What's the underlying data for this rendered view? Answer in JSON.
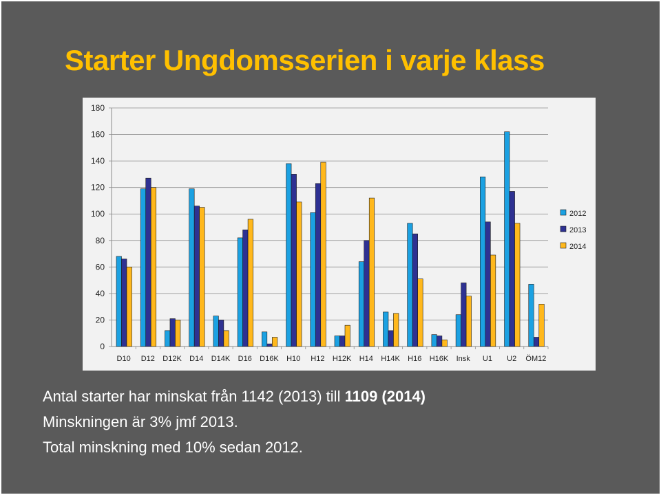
{
  "slide": {
    "title": "Starter Ungdomsserien i varje klass",
    "text_line1_prefix": "Antal starter har minskat från 1142 (2013) till ",
    "text_line1_bold": "1109 (2014)",
    "text_line2": "Minskningen är 3% jmf 2013.",
    "text_line3": "Total minskning med 10% sedan 2012."
  },
  "chart_data": {
    "type": "bar",
    "categories": [
      "D10",
      "D12",
      "D12K",
      "D14",
      "D14K",
      "D16",
      "D16K",
      "H10",
      "H12",
      "H12K",
      "H14",
      "H14K",
      "H16",
      "H16K",
      "Insk",
      "U1",
      "U2",
      "ÖM12"
    ],
    "series": [
      {
        "name": "2012",
        "color": "#1ba1e2",
        "values": [
          68,
          119,
          12,
          119,
          23,
          82,
          11,
          138,
          101,
          8,
          64,
          26,
          93,
          9,
          24,
          128,
          162,
          47
        ]
      },
      {
        "name": "2013",
        "color": "#2e3192",
        "values": [
          66,
          127,
          21,
          106,
          20,
          88,
          2,
          130,
          123,
          8,
          80,
          12,
          85,
          8,
          48,
          94,
          117,
          7
        ]
      },
      {
        "name": "2014",
        "color": "#ffb81c",
        "values": [
          60,
          120,
          20,
          105,
          12,
          96,
          7,
          109,
          139,
          16,
          112,
          25,
          51,
          5,
          38,
          69,
          93,
          32
        ]
      }
    ],
    "ylim": [
      0,
      180
    ],
    "yticks": [
      0,
      20,
      40,
      60,
      80,
      100,
      120,
      140,
      160,
      180
    ],
    "grid": true,
    "legend": "right"
  }
}
